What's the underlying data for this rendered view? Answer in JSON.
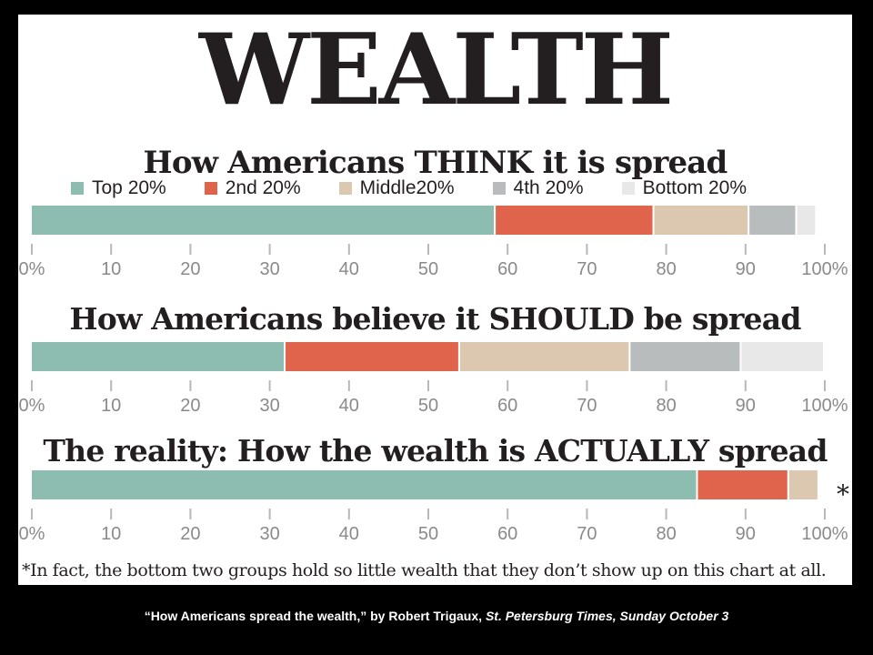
{
  "title": "WEALTH",
  "legend": [
    {
      "label": "Top 20%",
      "color": "#8dbdb0"
    },
    {
      "label": "2nd 20%",
      "color": "#e0634c"
    },
    {
      "label": "Middle20%",
      "color": "#dcc8b0"
    },
    {
      "label": "4th 20%",
      "color": "#b9bcbd"
    },
    {
      "label": "Bottom 20%",
      "color": "#e8e8e8"
    }
  ],
  "chart_data": [
    {
      "type": "bar",
      "orientation": "horizontal-stacked",
      "title": "How Americans THINK it is spread",
      "series": [
        {
          "name": "Top 20%",
          "values": [
            58.5
          ]
        },
        {
          "name": "2nd 20%",
          "values": [
            20
          ]
        },
        {
          "name": "Middle20%",
          "values": [
            12
          ]
        },
        {
          "name": "4th 20%",
          "values": [
            6
          ]
        },
        {
          "name": "Bottom 20%",
          "values": [
            2.5
          ]
        }
      ],
      "xlim": [
        0,
        100
      ],
      "ticks": [
        "0%",
        "10",
        "20",
        "30",
        "40",
        "50",
        "60",
        "70",
        "80",
        "90",
        "100%"
      ]
    },
    {
      "type": "bar",
      "orientation": "horizontal-stacked",
      "title": "How Americans believe it SHOULD be spread",
      "series": [
        {
          "name": "Top 20%",
          "values": [
            32
          ]
        },
        {
          "name": "2nd 20%",
          "values": [
            22
          ]
        },
        {
          "name": "Middle20%",
          "values": [
            21.5
          ]
        },
        {
          "name": "4th 20%",
          "values": [
            14
          ]
        },
        {
          "name": "Bottom 20%",
          "values": [
            10.5
          ]
        }
      ],
      "xlim": [
        0,
        100
      ],
      "ticks": [
        "0%",
        "10",
        "20",
        "30",
        "40",
        "50",
        "60",
        "70",
        "80",
        "90",
        "100%"
      ]
    },
    {
      "type": "bar",
      "orientation": "horizontal-stacked",
      "title": "The reality: How the wealth is ACTUALLY spread",
      "series": [
        {
          "name": "Top 20%",
          "values": [
            84
          ]
        },
        {
          "name": "2nd 20%",
          "values": [
            11.5
          ]
        },
        {
          "name": "Middle20%",
          "values": [
            3.8
          ]
        },
        {
          "name": "4th 20%",
          "values": [
            0.2
          ]
        },
        {
          "name": "Bottom 20%",
          "values": [
            0.1
          ]
        }
      ],
      "annotation": "*",
      "xlim": [
        0,
        100
      ],
      "ticks": [
        "0%",
        "10",
        "20",
        "30",
        "40",
        "50",
        "60",
        "70",
        "80",
        "90",
        "100%"
      ]
    }
  ],
  "footnote": "*In fact, the bottom two groups hold so little wealth that they don’t show up on this chart at all.",
  "credit": {
    "text": "“How Americans spread the wealth,”  by Robert Trigaux, ",
    "source": "St. Petersburg Times, Sunday October 3"
  }
}
